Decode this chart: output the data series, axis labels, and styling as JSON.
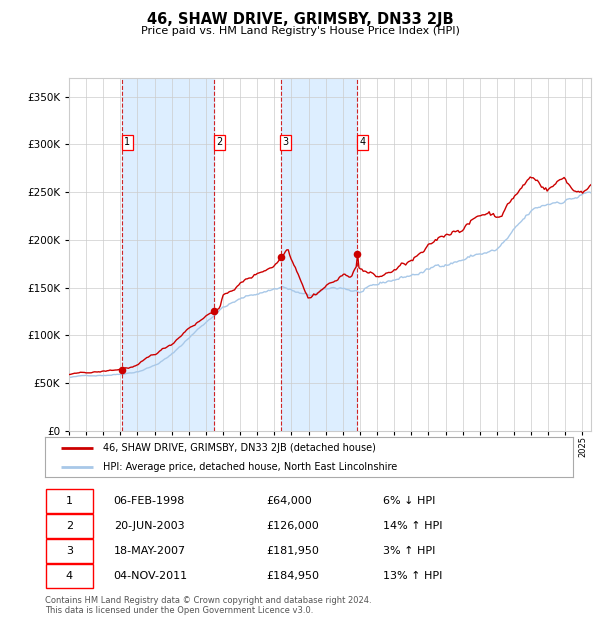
{
  "title": "46, SHAW DRIVE, GRIMSBY, DN33 2JB",
  "subtitle": "Price paid vs. HM Land Registry's House Price Index (HPI)",
  "legend_line1": "46, SHAW DRIVE, GRIMSBY, DN33 2JB (detached house)",
  "legend_line2": "HPI: Average price, detached house, North East Lincolnshire",
  "footer1": "Contains HM Land Registry data © Crown copyright and database right 2024.",
  "footer2": "This data is licensed under the Open Government Licence v3.0.",
  "transactions": [
    {
      "num": 1,
      "date": "06-FEB-1998",
      "price": 64000,
      "pct": "6%",
      "dir": "↓",
      "year": 1998.1
    },
    {
      "num": 2,
      "date": "20-JUN-2003",
      "price": 126000,
      "pct": "14%",
      "dir": "↑",
      "year": 2003.5
    },
    {
      "num": 3,
      "date": "18-MAY-2007",
      "price": 181950,
      "pct": "3%",
      "dir": "↑",
      "year": 2007.37
    },
    {
      "num": 4,
      "date": "04-NOV-2011",
      "price": 184950,
      "pct": "13%",
      "dir": "↑",
      "year": 2011.85
    }
  ],
  "hpi_color": "#a8c8e8",
  "price_color": "#cc0000",
  "marker_color": "#cc0000",
  "dashed_color": "#cc0000",
  "shade_color": "#ddeeff",
  "grid_color": "#cccccc",
  "background_color": "#ffffff",
  "ylim": [
    0,
    370000
  ],
  "xlim_start": 1995.0,
  "xlim_end": 2025.5,
  "yticks": [
    0,
    50000,
    100000,
    150000,
    200000,
    250000,
    300000,
    350000
  ]
}
